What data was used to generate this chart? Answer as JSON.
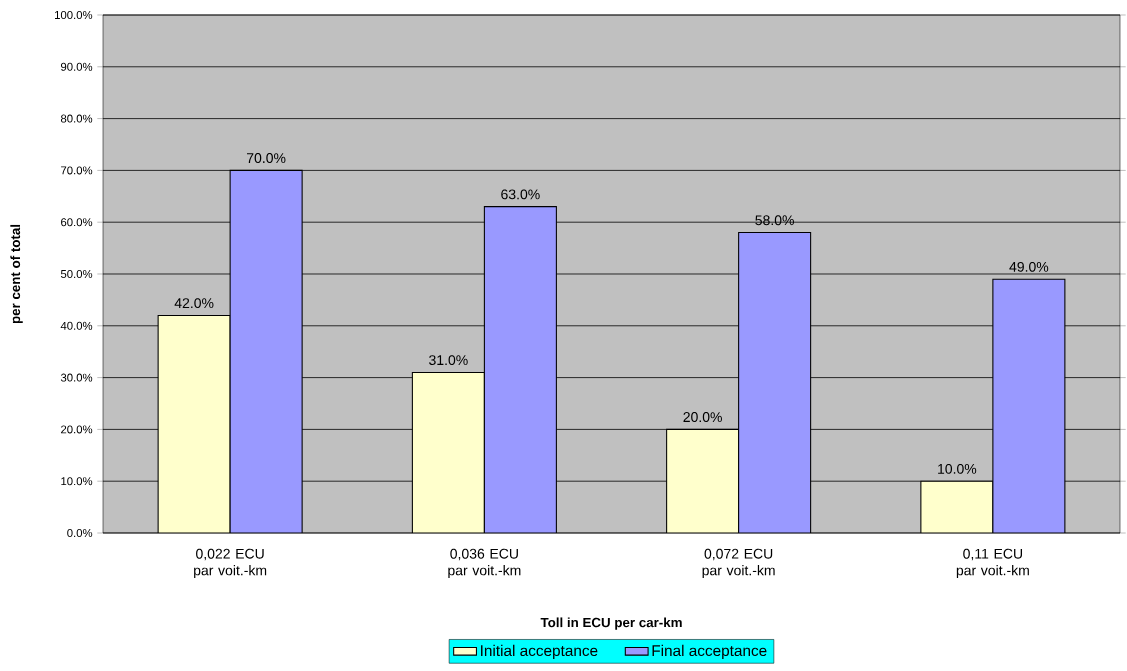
{
  "chart_data": {
    "type": "bar",
    "xlabel": "Toll in ECU per car-km",
    "ylabel": "per cent of total",
    "categories": [
      "0,022 ECU par voit.-km",
      "0,036 ECU par voit.-km",
      "0,072 ECU par voit.-km",
      "0,11 ECU par voit.-km"
    ],
    "series": [
      {
        "name": "Initial acceptance",
        "color": "#ffffcc",
        "values": [
          42,
          31,
          20,
          10
        ],
        "value_labels": [
          "42.0%",
          "31.0%",
          "20.0%",
          "10.0%"
        ]
      },
      {
        "name": "Final acceptance",
        "color": "#9999ff",
        "values": [
          70,
          63,
          58,
          49
        ],
        "value_labels": [
          "70.0%",
          "63.0%",
          "58.0%",
          "49.0%"
        ]
      }
    ],
    "ylim": [
      0,
      100
    ],
    "yticks": [
      {
        "value": 0,
        "label": "0.0%"
      },
      {
        "value": 10,
        "label": "10.0%"
      },
      {
        "value": 20,
        "label": "20.0%"
      },
      {
        "value": 30,
        "label": "30.0%"
      },
      {
        "value": 40,
        "label": "40.0%"
      },
      {
        "value": 50,
        "label": "50.0%"
      },
      {
        "value": 60,
        "label": "60.0%"
      },
      {
        "value": 70,
        "label": "70.0%"
      },
      {
        "value": 80,
        "label": "80.0%"
      },
      {
        "value": 90,
        "label": "90.0%"
      },
      {
        "value": 100,
        "label": "100.0%"
      }
    ],
    "grid": "y",
    "legend": "bottom"
  }
}
